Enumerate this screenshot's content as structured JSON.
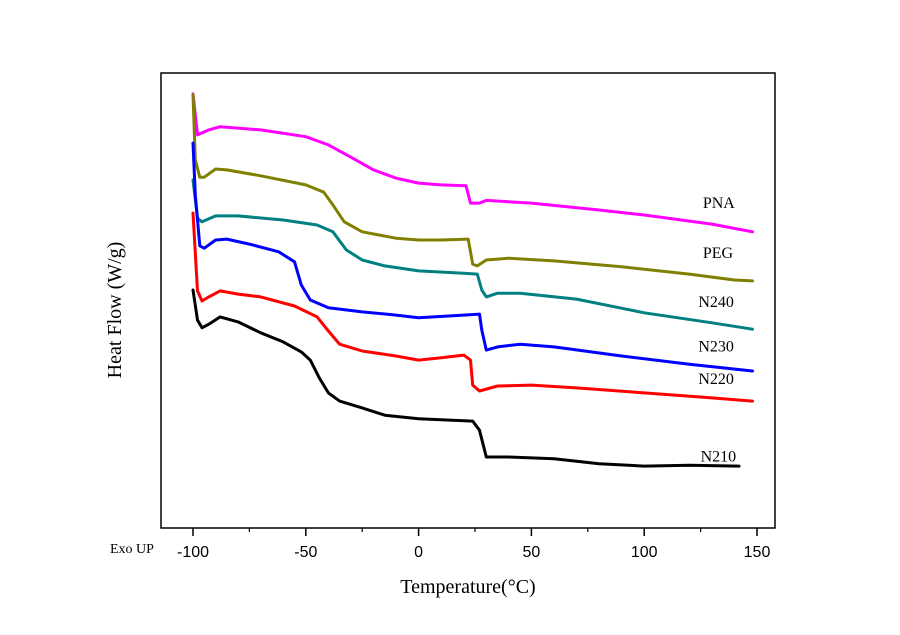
{
  "chart_data": {
    "type": "line",
    "title": "",
    "xlabel": "Temperature(°C)",
    "ylabel": "Heat Flow (W/g)",
    "annotation": "Exo UP",
    "xlim": [
      -115,
      158
    ],
    "ylim": [
      0,
      100
    ],
    "y_units_note": "relative (arbitrary) heat flow, curves offset; no y tick labels shown",
    "xticks": [
      -100,
      -50,
      0,
      50,
      100,
      150
    ],
    "xtick_labels": [
      "-100",
      "-50",
      "0",
      "50",
      "100",
      "150"
    ],
    "minor_xticks": [
      -75,
      -25,
      25,
      75,
      125
    ],
    "grid": false,
    "legend": "inline labels at right end of curves",
    "series": [
      {
        "name": "PNA",
        "color": "#ff00ff",
        "points": [
          [
            -100,
            95.4
          ],
          [
            -98,
            86.4
          ],
          [
            -93,
            87.5
          ],
          [
            -88,
            88.2
          ],
          [
            -70,
            87.5
          ],
          [
            -50,
            86
          ],
          [
            -40,
            84.2
          ],
          [
            -30,
            81.5
          ],
          [
            -20,
            78.7
          ],
          [
            -10,
            76.9
          ],
          [
            0,
            75.8
          ],
          [
            10,
            75.4
          ],
          [
            21,
            75.2
          ],
          [
            23,
            71.4
          ],
          [
            27,
            71.4
          ],
          [
            30,
            72
          ],
          [
            50,
            71.4
          ],
          [
            80,
            69.9
          ],
          [
            100,
            68.8
          ],
          [
            130,
            66.8
          ],
          [
            148,
            65.1
          ]
        ]
      },
      {
        "name": "PEG",
        "color": "#808000",
        "points": [
          [
            -100,
            95.2
          ],
          [
            -99,
            80.9
          ],
          [
            -97,
            77.1
          ],
          [
            -95,
            77.1
          ],
          [
            -90,
            78.9
          ],
          [
            -85,
            78.7
          ],
          [
            -70,
            77.4
          ],
          [
            -50,
            75.4
          ],
          [
            -42,
            73.8
          ],
          [
            -38,
            71
          ],
          [
            -33,
            67.3
          ],
          [
            -25,
            65.1
          ],
          [
            -10,
            63.7
          ],
          [
            0,
            63.3
          ],
          [
            10,
            63.3
          ],
          [
            22,
            63.5
          ],
          [
            24,
            58
          ],
          [
            26,
            57.6
          ],
          [
            30,
            58.9
          ],
          [
            40,
            59.3
          ],
          [
            60,
            58.7
          ],
          [
            90,
            57.4
          ],
          [
            120,
            55.8
          ],
          [
            140,
            54.5
          ],
          [
            148,
            54.3
          ]
        ]
      },
      {
        "name": "N240",
        "color": "#008080",
        "points": [
          [
            -100,
            76.5
          ],
          [
            -98,
            68.1
          ],
          [
            -96,
            67.3
          ],
          [
            -90,
            68.6
          ],
          [
            -80,
            68.6
          ],
          [
            -60,
            67.7
          ],
          [
            -45,
            66.6
          ],
          [
            -38,
            65.1
          ],
          [
            -32,
            61.1
          ],
          [
            -25,
            58.9
          ],
          [
            -15,
            57.6
          ],
          [
            0,
            56.5
          ],
          [
            20,
            56
          ],
          [
            26,
            55.8
          ],
          [
            28,
            52.3
          ],
          [
            30,
            50.8
          ],
          [
            35,
            51.6
          ],
          [
            45,
            51.6
          ],
          [
            70,
            50.3
          ],
          [
            100,
            47.3
          ],
          [
            130,
            45.1
          ],
          [
            148,
            43.7
          ]
        ]
      },
      {
        "name": "N230",
        "color": "#0000ff",
        "points": [
          [
            -100,
            84.6
          ],
          [
            -99,
            73.2
          ],
          [
            -97,
            62
          ],
          [
            -95,
            61.5
          ],
          [
            -90,
            63.3
          ],
          [
            -85,
            63.5
          ],
          [
            -75,
            62.4
          ],
          [
            -62,
            60.7
          ],
          [
            -55,
            58.5
          ],
          [
            -52,
            53.4
          ],
          [
            -48,
            50.1
          ],
          [
            -40,
            48.4
          ],
          [
            -25,
            47.5
          ],
          [
            -10,
            46.8
          ],
          [
            0,
            46.2
          ],
          [
            20,
            46.8
          ],
          [
            27,
            47
          ],
          [
            28,
            43.5
          ],
          [
            30,
            39.1
          ],
          [
            35,
            39.8
          ],
          [
            45,
            40.4
          ],
          [
            60,
            39.8
          ],
          [
            90,
            37.8
          ],
          [
            120,
            36
          ],
          [
            148,
            34.5
          ]
        ]
      },
      {
        "name": "N220",
        "color": "#ff0000",
        "points": [
          [
            -100,
            69.2
          ],
          [
            -98,
            52.1
          ],
          [
            -96,
            49.9
          ],
          [
            -93,
            50.8
          ],
          [
            -88,
            52.1
          ],
          [
            -80,
            51.4
          ],
          [
            -70,
            50.8
          ],
          [
            -55,
            48.8
          ],
          [
            -45,
            46.4
          ],
          [
            -40,
            43.3
          ],
          [
            -35,
            40.4
          ],
          [
            -25,
            38.9
          ],
          [
            -10,
            37.8
          ],
          [
            0,
            36.9
          ],
          [
            10,
            37.4
          ],
          [
            20,
            38
          ],
          [
            23,
            36.9
          ],
          [
            24,
            31.4
          ],
          [
            27,
            30.1
          ],
          [
            35,
            31.2
          ],
          [
            50,
            31.4
          ],
          [
            70,
            30.8
          ],
          [
            100,
            29.7
          ],
          [
            130,
            28.6
          ],
          [
            148,
            27.9
          ]
        ]
      },
      {
        "name": "N210",
        "color": "#000000",
        "points": [
          [
            -100,
            52.3
          ],
          [
            -98,
            45.7
          ],
          [
            -96,
            44
          ],
          [
            -93,
            44.8
          ],
          [
            -88,
            46.4
          ],
          [
            -80,
            45.3
          ],
          [
            -70,
            42.9
          ],
          [
            -60,
            40.9
          ],
          [
            -52,
            38.7
          ],
          [
            -48,
            36.9
          ],
          [
            -44,
            33
          ],
          [
            -40,
            29.7
          ],
          [
            -35,
            27.9
          ],
          [
            -25,
            26.4
          ],
          [
            -15,
            24.8
          ],
          [
            0,
            24
          ],
          [
            15,
            23.7
          ],
          [
            24,
            23.5
          ],
          [
            27,
            21.5
          ],
          [
            30,
            15.6
          ],
          [
            40,
            15.6
          ],
          [
            60,
            15.2
          ],
          [
            80,
            14.1
          ],
          [
            100,
            13.6
          ],
          [
            120,
            13.8
          ],
          [
            142,
            13.6
          ]
        ]
      }
    ],
    "series_labels": [
      {
        "text": "PNA",
        "x": 126,
        "y": 70.3
      },
      {
        "text": "PEG",
        "x": 126,
        "y": 59.3
      },
      {
        "text": "N240",
        "x": 124,
        "y": 48.6
      },
      {
        "text": "N230",
        "x": 124,
        "y": 38.8
      },
      {
        "text": "N220",
        "x": 124,
        "y": 31.6
      },
      {
        "text": "N210",
        "x": 125,
        "y": 14.6
      }
    ]
  }
}
